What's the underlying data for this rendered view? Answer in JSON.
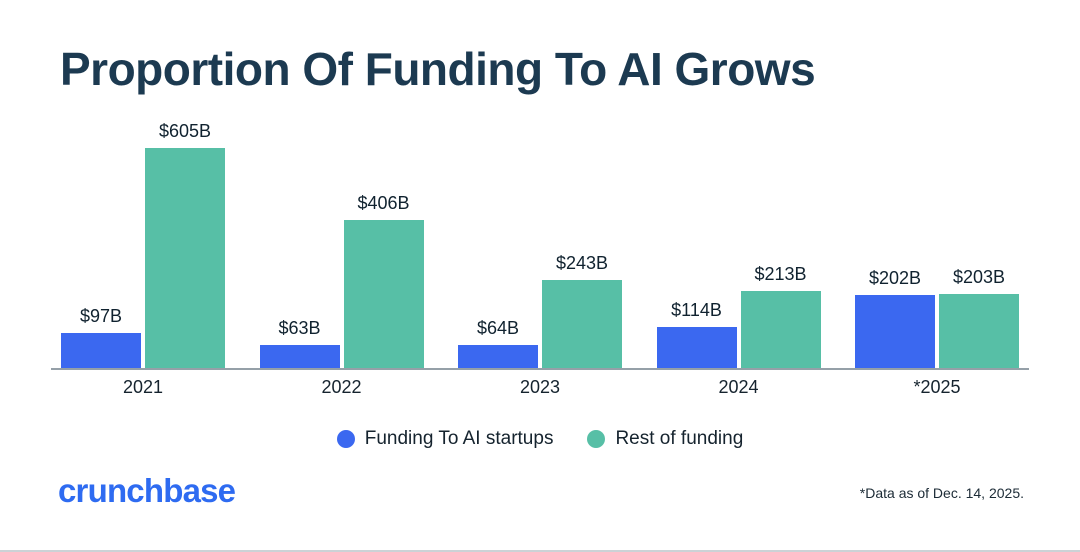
{
  "title": "Proportion Of Funding To AI Grows",
  "chart_data": {
    "type": "bar",
    "categories": [
      "2021",
      "2022",
      "2023",
      "2024",
      "*2025"
    ],
    "series": [
      {
        "name": "Funding To AI startups",
        "color": "#3b68f0",
        "values": [
          97,
          63,
          64,
          114,
          202
        ],
        "labels": [
          "$97B",
          "$63B",
          "$64B",
          "$114B",
          "$202B"
        ]
      },
      {
        "name": "Rest of funding",
        "color": "#57bfa6",
        "values": [
          605,
          406,
          243,
          213,
          203
        ],
        "labels": [
          "$605B",
          "$406B",
          "$243B",
          "$213B",
          "$203B"
        ]
      }
    ],
    "ylim": [
      0,
      605
    ],
    "grid": false,
    "legend_position": "bottom",
    "xlabel": "",
    "ylabel": ""
  },
  "footer": {
    "logo_text": "crunchbase",
    "footnote": "*Data as of Dec. 14, 2025."
  }
}
